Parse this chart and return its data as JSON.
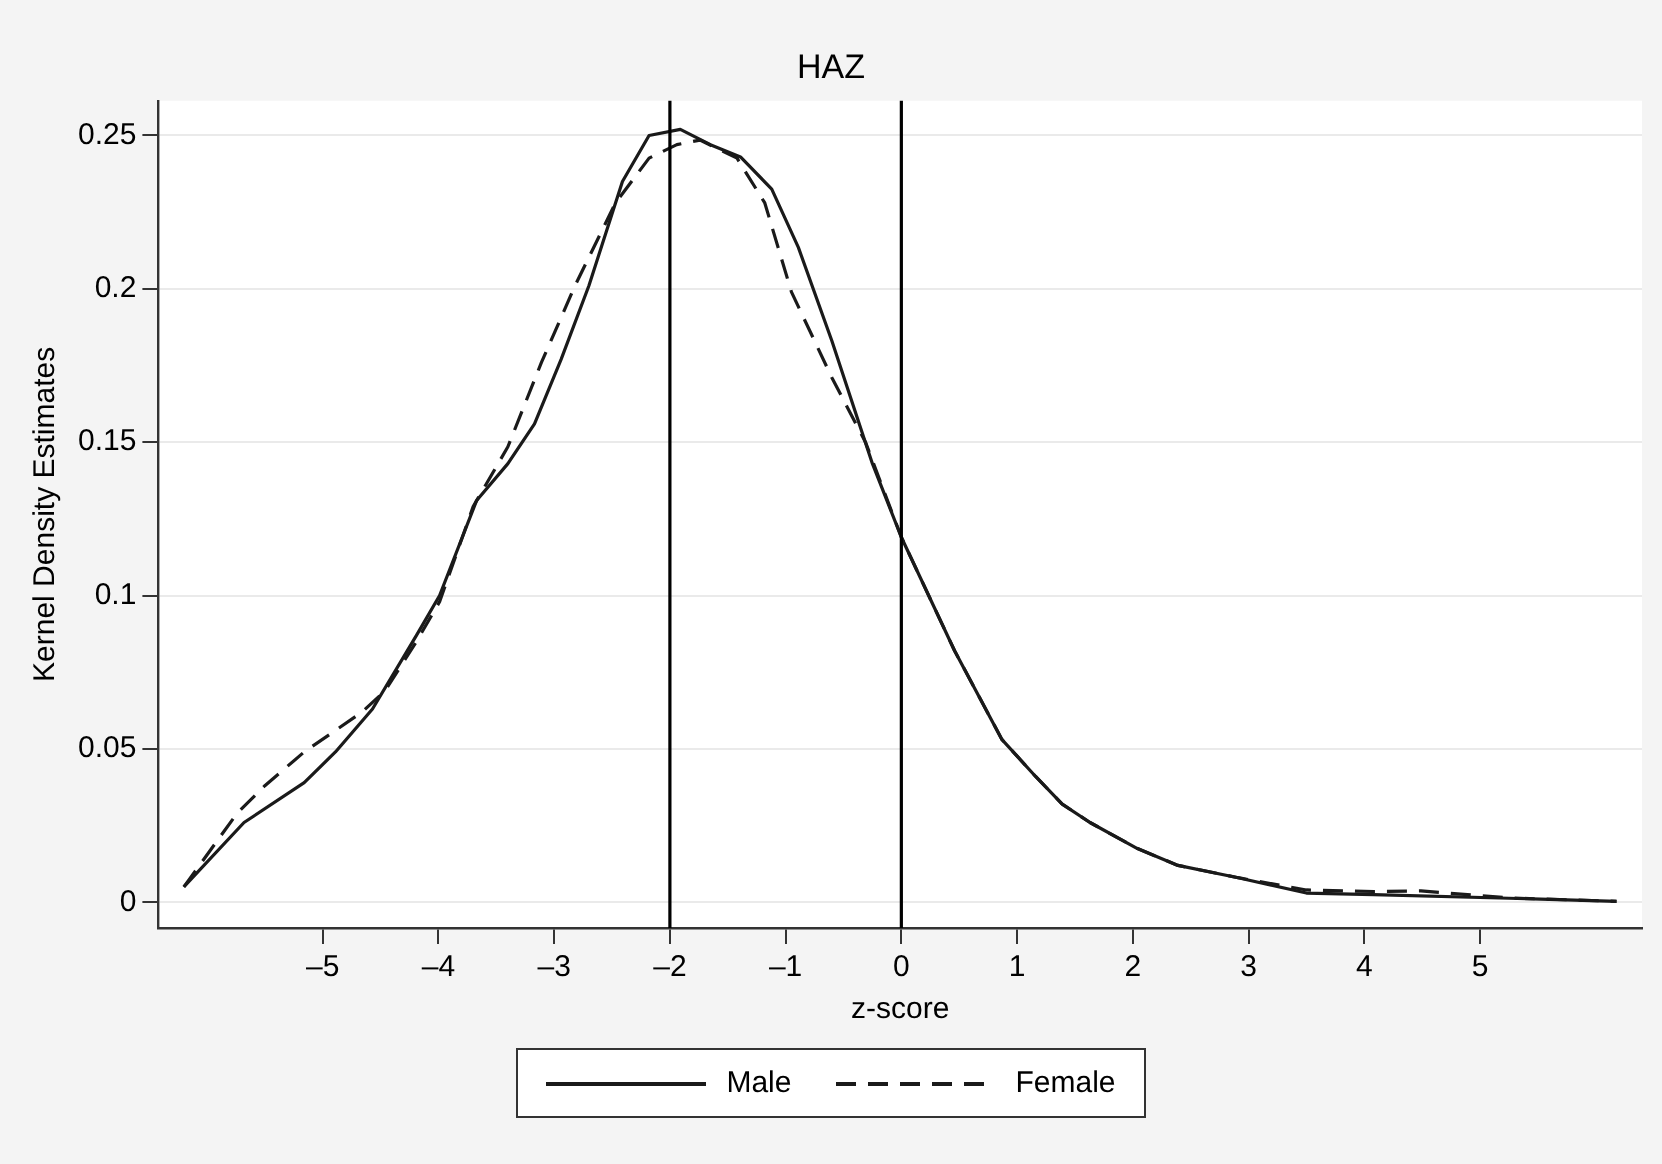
{
  "chart_data": {
    "type": "line",
    "title": "HAZ",
    "xlabel": "z-score",
    "ylabel": "Kernel Density Estimates",
    "xlim": [
      -6.42,
      6.4
    ],
    "xticks": [
      {
        "value": -5,
        "label": "–5"
      },
      {
        "value": -4,
        "label": "–4"
      },
      {
        "value": -3,
        "label": "–3"
      },
      {
        "value": -2,
        "label": "–2"
      },
      {
        "value": -1,
        "label": "–1"
      },
      0,
      1,
      2,
      3,
      4,
      5
    ],
    "ylim": [
      -0.0084,
      0.2613
    ],
    "yticks": [
      0,
      0.05,
      0.1,
      0.15,
      0.2,
      0.25
    ],
    "grid": "y",
    "legend": "bottom",
    "marker": "none",
    "ref_lines": [
      {
        "axis": "x",
        "value": -2,
        "color": "#000000"
      },
      {
        "axis": "x",
        "value": 0,
        "color": "#000000"
      }
    ],
    "series": [
      {
        "name": "Male",
        "color": "#1a1a1a",
        "line_style": "solid",
        "x": [
          -6.2,
          -5.68,
          -5.16,
          -4.89,
          -4.57,
          -4.19,
          -3.99,
          -3.67,
          -3.4,
          -3.17,
          -2.94,
          -2.7,
          -2.41,
          -2.18,
          -1.91,
          -1.65,
          -1.39,
          -1.12,
          -0.89,
          -0.6,
          -0.25,
          0,
          0.46,
          0.87,
          1.16,
          1.39,
          1.63,
          2.04,
          2.39,
          2.91,
          3.5,
          4.08,
          5.25,
          6.18
        ],
        "values": [
          0.005,
          0.026,
          0.039,
          0.049,
          0.063,
          0.087,
          0.1,
          0.131,
          0.143,
          0.156,
          0.177,
          0.201,
          0.235,
          0.25,
          0.252,
          0.247,
          0.243,
          0.2325,
          0.2135,
          0.183,
          0.143,
          0.119,
          0.082,
          0.053,
          0.041,
          0.032,
          0.026,
          0.0175,
          0.012,
          0.008,
          0.003,
          0.0025,
          0.0013,
          0.0003
        ]
      },
      {
        "name": "Female",
        "color": "#1a1a1a",
        "line_style": "dashed",
        "x": [
          -6.2,
          -5.74,
          -5.5,
          -5.16,
          -4.66,
          -4.46,
          -4.19,
          -3.99,
          -3.7,
          -3.4,
          -3.11,
          -2.82,
          -2.47,
          -2.18,
          -1.94,
          -1.74,
          -1.42,
          -1.18,
          -0.95,
          -0.6,
          -0.31,
          0,
          0.46,
          0.87,
          1.16,
          1.39,
          1.63,
          2.04,
          2.39,
          2.91,
          3.5,
          4.08,
          4.49,
          5.25,
          6.18
        ],
        "values": [
          0.005,
          0.029,
          0.038,
          0.049,
          0.062,
          0.069,
          0.085,
          0.098,
          0.129,
          0.1485,
          0.176,
          0.201,
          0.228,
          0.2426,
          0.247,
          0.2485,
          0.2426,
          0.228,
          0.199,
          0.171,
          0.15,
          0.119,
          0.082,
          0.053,
          0.041,
          0.032,
          0.026,
          0.0175,
          0.012,
          0.008,
          0.004,
          0.0035,
          0.0037,
          0.0014,
          0.0003
        ]
      }
    ]
  }
}
